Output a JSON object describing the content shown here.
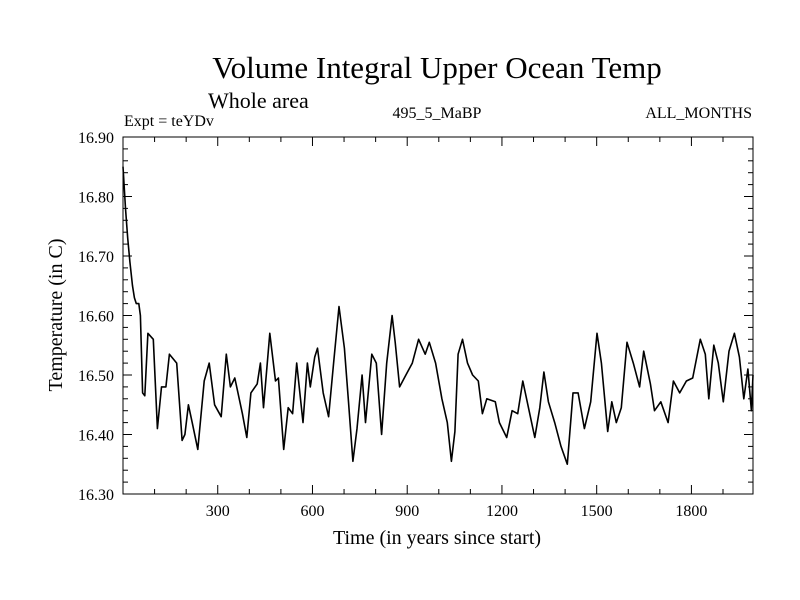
{
  "chart_data": {
    "type": "line",
    "title": "Volume Integral Upper Ocean Temp",
    "subtitle": "Whole area",
    "experiment": "Expt = teYDv",
    "run_label": "495_5_MaBP",
    "months_label": "ALL_MONTHS",
    "xlabel": "Time (in years since start)",
    "ylabel": "Temperature (in C)",
    "xlim": [
      0,
      1995
    ],
    "ylim": [
      16.3,
      16.9
    ],
    "xticks": [
      300,
      600,
      900,
      1200,
      1500,
      1800
    ],
    "xtick_labels": [
      "300",
      "600",
      "900",
      "1200",
      "1500",
      "1800"
    ],
    "yticks": [
      16.3,
      16.4,
      16.5,
      16.6,
      16.7,
      16.8,
      16.9
    ],
    "ytick_labels": [
      "16.30",
      "16.40",
      "16.50",
      "16.60",
      "16.70",
      "16.80",
      "16.90"
    ],
    "grid": false,
    "line_color": "#000000",
    "series": [
      {
        "name": "Volume Integral Upper Ocean Temp",
        "x": [
          0,
          8,
          15,
          22,
          30,
          36,
          42,
          50,
          55,
          62,
          69,
          79,
          96,
          109,
          122,
          136,
          147,
          170,
          187,
          196,
          207,
          219,
          237,
          257,
          273,
          290,
          311,
          327,
          340,
          354,
          378,
          392,
          405,
          425,
          435,
          445,
          465,
          483,
          492,
          509,
          523,
          537,
          550,
          570,
          584,
          593,
          607,
          616,
          634,
          651,
          667,
          684,
          701,
          714,
          728,
          741,
          757,
          768,
          788,
          802,
          819,
          835,
          852,
          862,
          876,
          896,
          916,
          936,
          957,
          970,
          990,
          1010,
          1027,
          1040,
          1051,
          1061,
          1075,
          1091,
          1107,
          1125,
          1138,
          1152,
          1179,
          1192,
          1215,
          1232,
          1250,
          1266,
          1286,
          1304,
          1320,
          1333,
          1347,
          1367,
          1387,
          1407,
          1425,
          1441,
          1461,
          1481,
          1501,
          1515,
          1535,
          1548,
          1562,
          1578,
          1596,
          1616,
          1636,
          1649,
          1670,
          1683,
          1703,
          1726,
          1743,
          1763,
          1784,
          1804,
          1828,
          1844,
          1855,
          1871,
          1885,
          1901,
          1919,
          1936,
          1952,
          1966,
          1979,
          1990,
          1995
        ],
        "y": [
          16.85,
          16.78,
          16.73,
          16.69,
          16.65,
          16.63,
          16.62,
          16.62,
          16.6,
          16.47,
          16.465,
          16.57,
          16.56,
          16.41,
          16.48,
          16.48,
          16.535,
          16.52,
          16.39,
          16.4,
          16.45,
          16.42,
          16.375,
          16.49,
          16.52,
          16.45,
          16.43,
          16.535,
          16.48,
          16.495,
          16.435,
          16.395,
          16.47,
          16.485,
          16.52,
          16.445,
          16.57,
          16.49,
          16.495,
          16.375,
          16.445,
          16.435,
          16.52,
          16.42,
          16.52,
          16.48,
          16.53,
          16.545,
          16.47,
          16.43,
          16.52,
          16.615,
          16.545,
          16.455,
          16.355,
          16.41,
          16.5,
          16.42,
          16.535,
          16.52,
          16.4,
          16.52,
          16.6,
          16.555,
          16.48,
          16.5,
          16.52,
          16.56,
          16.535,
          16.555,
          16.52,
          16.46,
          16.42,
          16.355,
          16.405,
          16.535,
          16.56,
          16.52,
          16.5,
          16.49,
          16.435,
          16.46,
          16.455,
          16.42,
          16.395,
          16.44,
          16.435,
          16.49,
          16.44,
          16.395,
          16.445,
          16.505,
          16.455,
          16.42,
          16.38,
          16.35,
          16.47,
          16.47,
          16.41,
          16.455,
          16.57,
          16.52,
          16.405,
          16.455,
          16.42,
          16.445,
          16.555,
          16.52,
          16.48,
          16.54,
          16.485,
          16.44,
          16.455,
          16.42,
          16.49,
          16.47,
          16.49,
          16.495,
          16.56,
          16.535,
          16.46,
          16.55,
          16.52,
          16.455,
          16.54,
          16.57,
          16.53,
          16.46,
          16.51,
          16.44,
          16.5
        ]
      }
    ]
  }
}
